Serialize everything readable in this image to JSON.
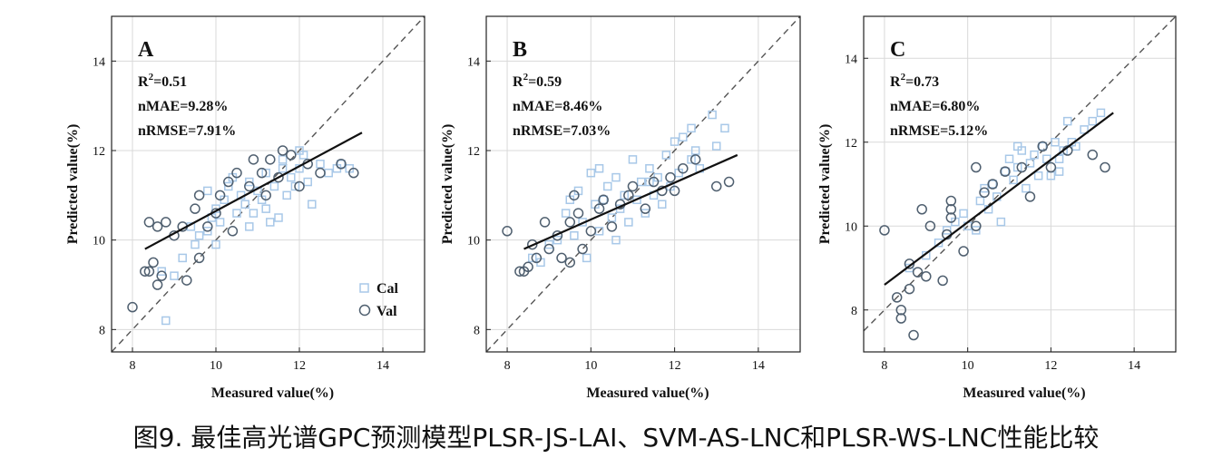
{
  "caption": "图9. 最佳高光谱GPC预测模型PLSR-JS-LAI、SVM-AS-LNC和PLSR-WS-LNC性能比较",
  "colors": {
    "cal": "#a8c8e8",
    "val": "#4f5f6f",
    "fit": "#111111",
    "ref": "#555555",
    "grid": "#d9d9d9"
  },
  "legend": {
    "cal": "Cal",
    "val": "Val"
  },
  "chart_data": [
    {
      "type": "scatter",
      "panel": "A",
      "stats": {
        "r2_prefix": "R",
        "r2_sup": "2",
        "r2_value": "=0.51",
        "nmae": "nMAE=9.28%",
        "nrmse": "nRMSE=7.91%"
      },
      "xlabel": "Measured value(%)",
      "ylabel": "Predicted value(%)",
      "xlim": [
        7.5,
        15
      ],
      "ylim": [
        7.5,
        15
      ],
      "xticks": [
        8,
        10,
        12,
        14
      ],
      "yticks": [
        8,
        10,
        12,
        14
      ],
      "grid": true,
      "legend_position": "bottom-right",
      "fit_line": {
        "x": [
          8.3,
          13.5
        ],
        "y": [
          9.8,
          12.4
        ]
      },
      "series": [
        {
          "name": "Cal",
          "marker": "square",
          "points": [
            [
              8.8,
              8.2
            ],
            [
              8.7,
              9.3
            ],
            [
              9.0,
              9.2
            ],
            [
              9.2,
              9.6
            ],
            [
              9.5,
              9.9
            ],
            [
              9.6,
              10.1
            ],
            [
              9.8,
              10.2
            ],
            [
              9.9,
              10.5
            ],
            [
              10.0,
              9.9
            ],
            [
              10.1,
              10.4
            ],
            [
              10.2,
              10.9
            ],
            [
              10.3,
              11.2
            ],
            [
              10.5,
              10.6
            ],
            [
              10.6,
              11.0
            ],
            [
              10.7,
              10.8
            ],
            [
              10.8,
              11.3
            ],
            [
              10.9,
              10.6
            ],
            [
              11.0,
              11.1
            ],
            [
              11.1,
              10.9
            ],
            [
              11.2,
              11.5
            ],
            [
              11.3,
              10.4
            ],
            [
              11.4,
              11.2
            ],
            [
              11.5,
              10.5
            ],
            [
              11.6,
              11.8
            ],
            [
              11.7,
              11.0
            ],
            [
              11.8,
              11.4
            ],
            [
              11.9,
              11.2
            ],
            [
              12.0,
              11.6
            ],
            [
              12.1,
              11.9
            ],
            [
              12.2,
              11.3
            ],
            [
              12.3,
              10.8
            ],
            [
              12.5,
              11.7
            ],
            [
              12.7,
              11.5
            ],
            [
              12.9,
              11.6
            ],
            [
              13.0,
              11.7
            ],
            [
              13.2,
              11.6
            ],
            [
              9.8,
              11.1
            ],
            [
              10.0,
              10.7
            ],
            [
              10.4,
              11.4
            ],
            [
              10.8,
              10.3
            ],
            [
              11.2,
              10.7
            ],
            [
              11.6,
              11.6
            ],
            [
              12.0,
              12.0
            ],
            [
              9.4,
              10.3
            ]
          ]
        },
        {
          "name": "Val",
          "marker": "circle",
          "points": [
            [
              8.0,
              8.5
            ],
            [
              8.3,
              9.3
            ],
            [
              8.4,
              9.3
            ],
            [
              8.5,
              9.5
            ],
            [
              8.6,
              9.0
            ],
            [
              8.7,
              9.2
            ],
            [
              8.4,
              10.4
            ],
            [
              8.6,
              10.3
            ],
            [
              8.8,
              10.4
            ],
            [
              9.0,
              10.1
            ],
            [
              9.2,
              10.3
            ],
            [
              9.3,
              9.1
            ],
            [
              9.5,
              10.7
            ],
            [
              9.6,
              9.6
            ],
            [
              9.6,
              11.0
            ],
            [
              9.8,
              10.3
            ],
            [
              10.0,
              10.6
            ],
            [
              10.1,
              11.0
            ],
            [
              10.3,
              11.3
            ],
            [
              10.4,
              10.2
            ],
            [
              10.5,
              11.5
            ],
            [
              10.8,
              11.2
            ],
            [
              10.9,
              11.8
            ],
            [
              11.1,
              11.5
            ],
            [
              11.2,
              11.0
            ],
            [
              11.3,
              11.8
            ],
            [
              11.5,
              11.4
            ],
            [
              11.6,
              12.0
            ],
            [
              11.8,
              11.9
            ],
            [
              12.0,
              11.2
            ],
            [
              12.2,
              11.7
            ],
            [
              12.5,
              11.5
            ],
            [
              13.0,
              11.7
            ],
            [
              13.3,
              11.5
            ]
          ]
        }
      ]
    },
    {
      "type": "scatter",
      "panel": "B",
      "stats": {
        "r2_prefix": "R",
        "r2_sup": "2",
        "r2_value": "=0.59",
        "nmae": "nMAE=8.46%",
        "nrmse": "nRMSE=7.03%"
      },
      "xlabel": "Measured value(%)",
      "ylabel": "Predicted value(%)",
      "xlim": [
        7.5,
        15
      ],
      "ylim": [
        7.5,
        15
      ],
      "xticks": [
        8,
        10,
        12,
        14
      ],
      "yticks": [
        8,
        10,
        12,
        14
      ],
      "grid": true,
      "fit_line": {
        "x": [
          8.4,
          13.5
        ],
        "y": [
          9.8,
          11.9
        ]
      },
      "series": [
        {
          "name": "Cal",
          "marker": "square",
          "points": [
            [
              8.6,
              9.6
            ],
            [
              8.8,
              9.5
            ],
            [
              9.0,
              9.9
            ],
            [
              9.2,
              10.0
            ],
            [
              9.4,
              10.6
            ],
            [
              9.6,
              10.1
            ],
            [
              9.7,
              11.1
            ],
            [
              9.8,
              10.4
            ],
            [
              9.9,
              9.6
            ],
            [
              10.0,
              11.5
            ],
            [
              10.1,
              10.8
            ],
            [
              10.2,
              10.2
            ],
            [
              10.3,
              10.9
            ],
            [
              10.4,
              11.2
            ],
            [
              10.5,
              10.5
            ],
            [
              10.6,
              11.4
            ],
            [
              10.7,
              10.7
            ],
            [
              10.8,
              11.0
            ],
            [
              10.9,
              10.4
            ],
            [
              11.0,
              11.8
            ],
            [
              11.1,
              10.9
            ],
            [
              11.2,
              11.3
            ],
            [
              11.3,
              10.6
            ],
            [
              11.4,
              11.6
            ],
            [
              11.5,
              11.0
            ],
            [
              11.6,
              11.4
            ],
            [
              11.7,
              10.8
            ],
            [
              11.8,
              11.9
            ],
            [
              11.9,
              11.2
            ],
            [
              12.0,
              12.2
            ],
            [
              12.1,
              11.5
            ],
            [
              12.2,
              12.3
            ],
            [
              12.4,
              11.8
            ],
            [
              12.5,
              12.0
            ],
            [
              12.6,
              11.6
            ],
            [
              12.9,
              12.8
            ],
            [
              13.0,
              12.1
            ],
            [
              13.2,
              12.5
            ],
            [
              10.2,
              11.6
            ],
            [
              10.6,
              10.0
            ],
            [
              11.4,
              11.3
            ],
            [
              12.4,
              12.5
            ],
            [
              9.5,
              10.9
            ]
          ]
        },
        {
          "name": "Val",
          "marker": "circle",
          "points": [
            [
              8.0,
              10.2
            ],
            [
              8.3,
              9.3
            ],
            [
              8.4,
              9.3
            ],
            [
              8.5,
              9.4
            ],
            [
              8.6,
              9.9
            ],
            [
              8.7,
              9.6
            ],
            [
              8.9,
              10.4
            ],
            [
              9.0,
              9.8
            ],
            [
              9.2,
              10.1
            ],
            [
              9.3,
              9.6
            ],
            [
              9.5,
              9.5
            ],
            [
              9.5,
              10.4
            ],
            [
              9.6,
              11.0
            ],
            [
              9.7,
              10.6
            ],
            [
              9.8,
              9.8
            ],
            [
              10.0,
              10.2
            ],
            [
              10.2,
              10.7
            ],
            [
              10.3,
              10.9
            ],
            [
              10.5,
              10.3
            ],
            [
              10.7,
              10.8
            ],
            [
              10.9,
              11.0
            ],
            [
              11.0,
              11.2
            ],
            [
              11.3,
              10.7
            ],
            [
              11.5,
              11.3
            ],
            [
              11.7,
              11.1
            ],
            [
              11.9,
              11.4
            ],
            [
              12.0,
              11.1
            ],
            [
              12.2,
              11.6
            ],
            [
              12.5,
              11.8
            ],
            [
              13.0,
              11.2
            ],
            [
              13.3,
              11.3
            ]
          ]
        }
      ]
    },
    {
      "type": "scatter",
      "panel": "C",
      "stats": {
        "r2_prefix": "R",
        "r2_sup": "2",
        "r2_value": "=0.73",
        "nmae": "nMAE=6.80%",
        "nrmse": "nRMSE=5.12%"
      },
      "xlabel": "Measured value(%)",
      "ylabel": "Predicted value(%)",
      "xlim": [
        7.5,
        15
      ],
      "ylim": [
        7.0,
        15
      ],
      "xticks": [
        8,
        10,
        12,
        14
      ],
      "yticks": [
        8,
        10,
        12,
        14
      ],
      "grid": true,
      "fit_line": {
        "x": [
          8.0,
          13.5
        ],
        "y": [
          8.6,
          12.7
        ]
      },
      "series": [
        {
          "name": "Cal",
          "marker": "square",
          "points": [
            [
              8.6,
              9.0
            ],
            [
              9.0,
              9.3
            ],
            [
              9.3,
              9.6
            ],
            [
              9.5,
              9.9
            ],
            [
              9.7,
              10.1
            ],
            [
              9.9,
              10.3
            ],
            [
              10.0,
              10.0
            ],
            [
              10.2,
              9.9
            ],
            [
              10.3,
              10.6
            ],
            [
              10.5,
              10.4
            ],
            [
              10.6,
              11.0
            ],
            [
              10.7,
              10.7
            ],
            [
              10.8,
              10.1
            ],
            [
              10.9,
              11.3
            ],
            [
              11.0,
              11.6
            ],
            [
              11.1,
              11.1
            ],
            [
              11.2,
              11.4
            ],
            [
              11.3,
              11.8
            ],
            [
              11.4,
              10.9
            ],
            [
              11.5,
              11.5
            ],
            [
              11.6,
              11.7
            ],
            [
              11.7,
              11.2
            ],
            [
              11.8,
              11.9
            ],
            [
              11.9,
              11.6
            ],
            [
              12.0,
              11.2
            ],
            [
              12.1,
              12.0
            ],
            [
              12.2,
              11.6
            ],
            [
              12.3,
              11.8
            ],
            [
              12.4,
              12.5
            ],
            [
              12.5,
              12.0
            ],
            [
              12.6,
              11.9
            ],
            [
              12.8,
              12.3
            ],
            [
              13.0,
              12.5
            ],
            [
              13.2,
              12.7
            ],
            [
              10.4,
              10.9
            ],
            [
              11.2,
              11.9
            ],
            [
              12.2,
              11.3
            ]
          ]
        },
        {
          "name": "Val",
          "marker": "circle",
          "points": [
            [
              8.0,
              9.9
            ],
            [
              8.3,
              8.3
            ],
            [
              8.4,
              8.0
            ],
            [
              8.4,
              7.8
            ],
            [
              8.6,
              8.5
            ],
            [
              8.7,
              7.4
            ],
            [
              8.6,
              9.1
            ],
            [
              8.8,
              8.9
            ],
            [
              8.9,
              10.4
            ],
            [
              9.0,
              8.8
            ],
            [
              9.1,
              10.0
            ],
            [
              9.4,
              8.7
            ],
            [
              9.5,
              9.8
            ],
            [
              9.6,
              10.6
            ],
            [
              9.6,
              10.4
            ],
            [
              9.6,
              10.2
            ],
            [
              9.9,
              9.4
            ],
            [
              10.2,
              11.4
            ],
            [
              10.2,
              10.0
            ],
            [
              10.4,
              10.8
            ],
            [
              10.6,
              11.0
            ],
            [
              10.9,
              11.3
            ],
            [
              11.3,
              11.4
            ],
            [
              11.5,
              10.7
            ],
            [
              11.8,
              11.9
            ],
            [
              12.0,
              11.4
            ],
            [
              12.4,
              11.8
            ],
            [
              13.0,
              11.7
            ],
            [
              13.3,
              11.4
            ]
          ]
        }
      ]
    }
  ]
}
